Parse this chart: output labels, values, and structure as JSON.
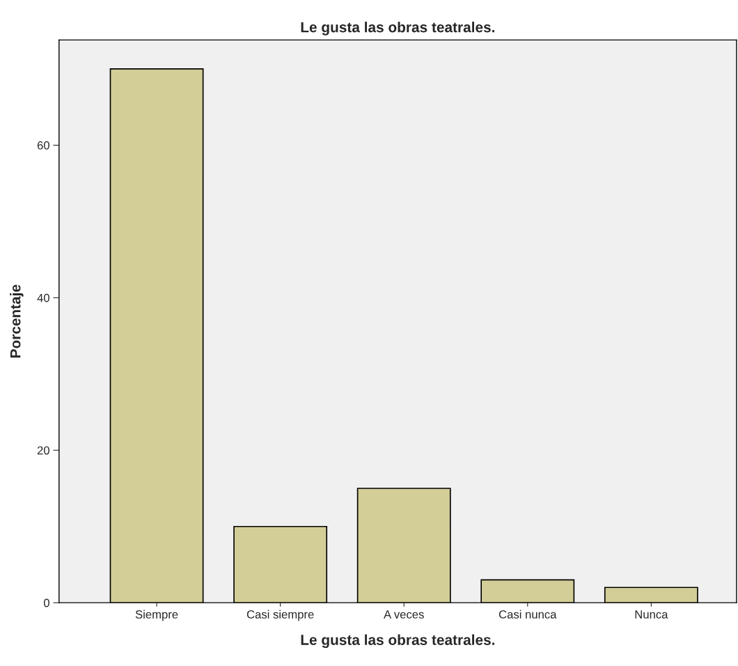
{
  "chart_data": {
    "type": "bar",
    "title": "Le gusta las obras teatrales.",
    "xlabel": "Le gusta las obras teatrales.",
    "ylabel": "Porcentaje",
    "categories": [
      "Siempre",
      "Casi siempre",
      "A veces",
      "Casi nunca",
      "Nunca"
    ],
    "values": [
      70,
      10,
      15,
      3,
      2
    ],
    "color": "#d3ce97",
    "ylim": [
      0,
      73.8
    ],
    "yticks": [
      0,
      20,
      40,
      60
    ],
    "grid": false,
    "legend": false
  }
}
